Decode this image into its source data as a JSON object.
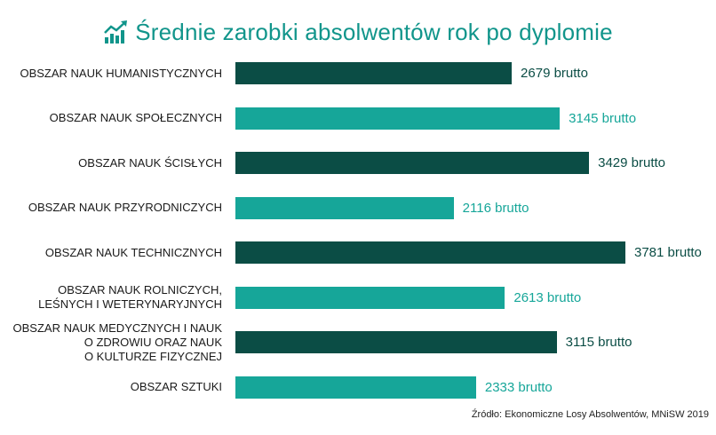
{
  "colors": {
    "dark": "#0b4d45",
    "light": "#16a699",
    "title": "#11958b"
  },
  "icon": "trending-chart-icon",
  "chart_data": {
    "type": "bar",
    "orientation": "horizontal",
    "title": "Średnie zarobki absolwentów rok po dyplomie",
    "categories": [
      "OBSZAR NAUK HUMANISTYCZNYCH",
      "OBSZAR NAUK SPOŁECZNYCH",
      "OBSZAR NAUK ŚCISŁYCH",
      "OBSZAR NAUK PRZYRODNICZYCH",
      "OBSZAR NAUK TECHNICZNYCH",
      "OBSZAR NAUK ROLNICZYCH,\nLEŚNYCH I WETERYNARYJNYCH",
      "OBSZAR NAUK MEDYCZNYCH I NAUK\nO ZDROWIU ORAZ NAUK\nO KULTURZE FIZYCZNEJ",
      "OBSZAR SZTUKI"
    ],
    "values": [
      2679,
      3145,
      3429,
      2116,
      3781,
      2613,
      3115,
      2333
    ],
    "value_labels": [
      "2679 brutto",
      "3145 brutto",
      "3429 brutto",
      "2116 brutto",
      "3781 brutto",
      "2613 brutto",
      "3115 brutto",
      "2333 brutto"
    ],
    "bar_colors": [
      "dark",
      "light",
      "dark",
      "light",
      "dark",
      "light",
      "dark",
      "light"
    ],
    "xlim": [
      0,
      3900
    ],
    "grid": false,
    "legend": "none",
    "source": "Źródło: Ekonomiczne Losy Absolwentów, MNiSW 2019"
  }
}
